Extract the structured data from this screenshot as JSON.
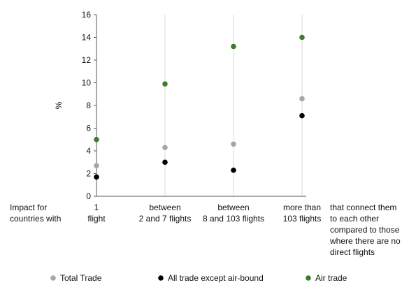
{
  "chart_data": {
    "type": "scatter",
    "ylabel": "%",
    "ylim": [
      0,
      16
    ],
    "yticks": [
      0,
      2,
      4,
      6,
      8,
      10,
      12,
      14,
      16
    ],
    "grid": "vertical lines at categories",
    "row_label": [
      "Impact for",
      "countries with"
    ],
    "categories": [
      [
        "1",
        "flight"
      ],
      [
        "between",
        "2 and 7 flights"
      ],
      [
        "between",
        "8 and 103 flights"
      ],
      [
        "more than",
        "103 flights"
      ]
    ],
    "right_note": [
      "that connect them",
      "to each other",
      "compared to those",
      "where there are no",
      "direct flights"
    ],
    "series": [
      {
        "name": "Total Trade",
        "color": "#a6a6a6",
        "values": [
          2.7,
          4.3,
          4.6,
          8.6
        ]
      },
      {
        "name": "All trade except air-bound",
        "color": "#000000",
        "values": [
          1.7,
          3.0,
          2.3,
          7.1
        ]
      },
      {
        "name": "Air trade",
        "color": "#3a7d2c",
        "values": [
          5.0,
          9.9,
          13.2,
          14.0
        ]
      }
    ],
    "legend_position": "bottom"
  }
}
